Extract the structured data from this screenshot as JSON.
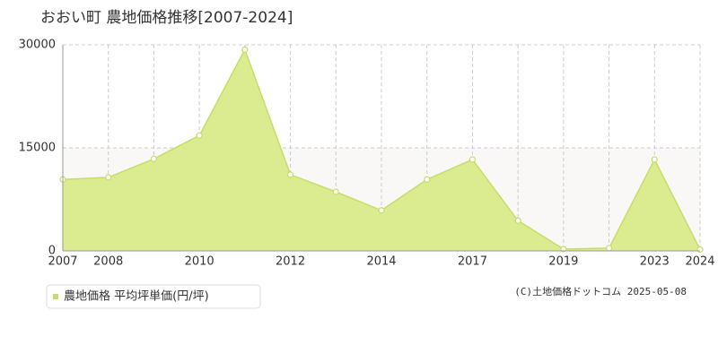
{
  "chart_data": {
    "type": "area",
    "title": "おおい町 農地価格推移[2007-2024]",
    "categories": [
      "2007",
      "2008",
      null,
      "2010",
      null,
      "2012",
      null,
      "2014",
      null,
      "2017",
      null,
      "2019",
      null,
      "2023",
      "2024"
    ],
    "series": [
      {
        "name": "農地価格 平均坪単価(円/坪)",
        "color": "#c5de6a",
        "values": [
          10400,
          10700,
          13400,
          16800,
          29300,
          11100,
          8600,
          5900,
          10400,
          13300,
          4400,
          260,
          400,
          13300,
          200
        ]
      }
    ],
    "ylim": [
      0,
      30000
    ],
    "yticks": [
      0,
      15000,
      30000
    ],
    "grid": true,
    "copyright": "(C)土地価格ドットコム 2025-05-08"
  }
}
